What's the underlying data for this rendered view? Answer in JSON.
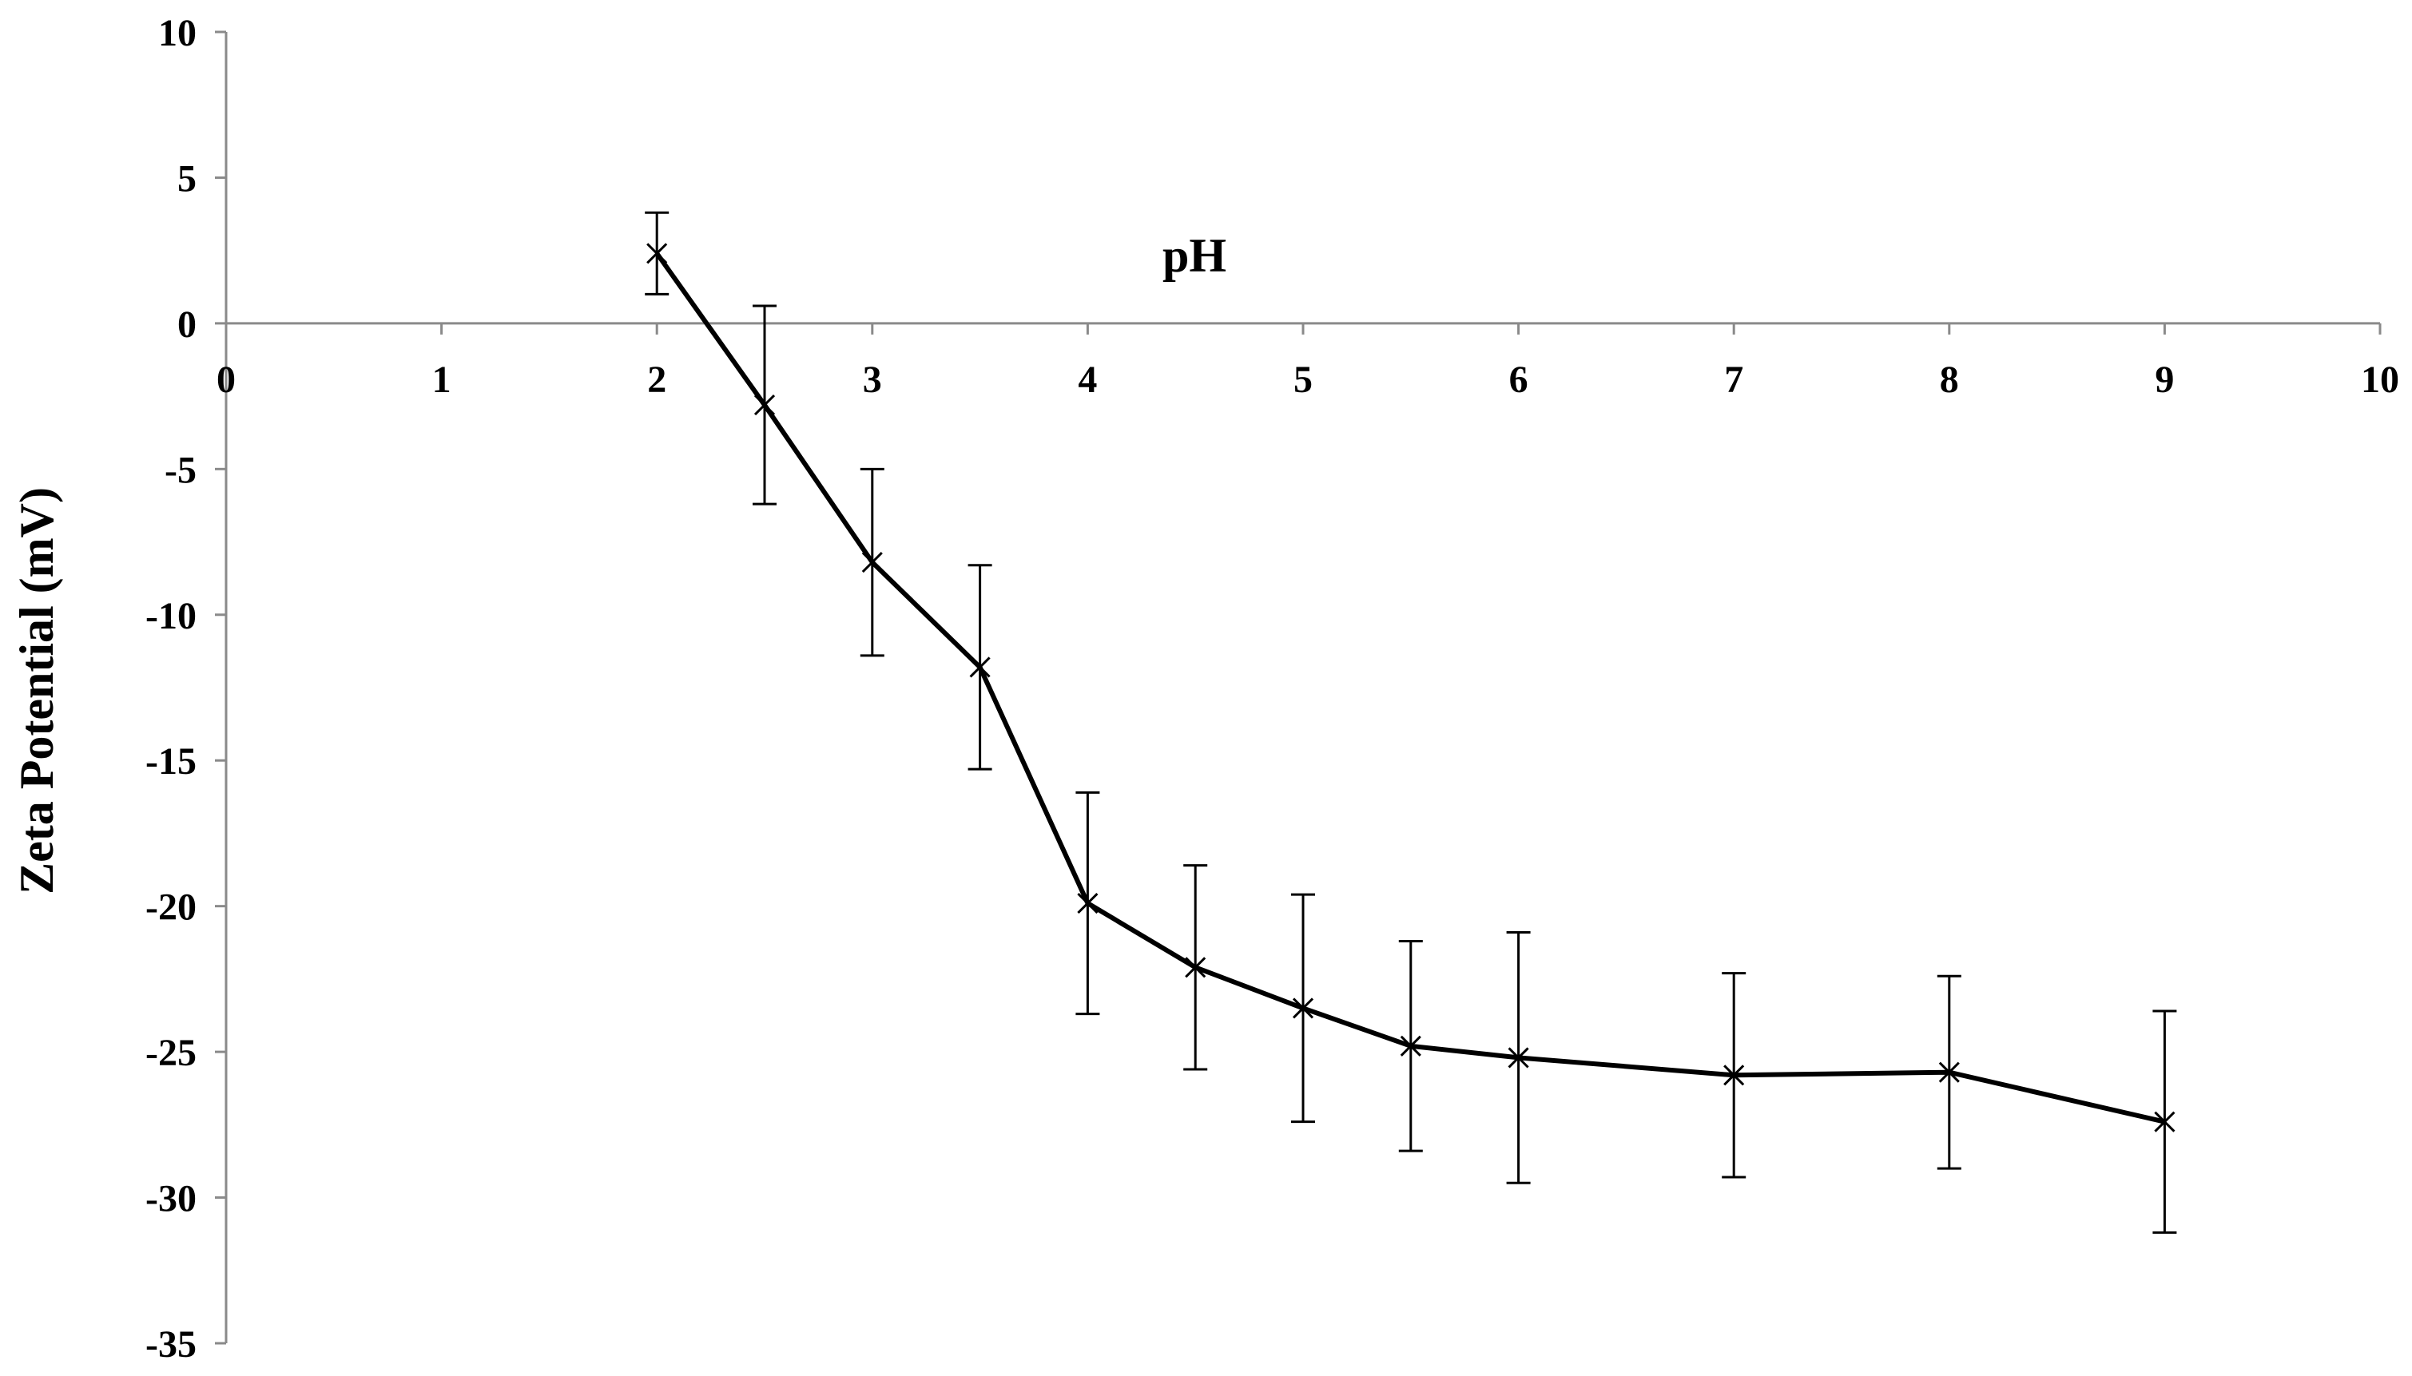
{
  "chart_data": {
    "type": "line",
    "title": "",
    "xlabel": "pH",
    "ylabel": "Zeta Potential (mV)",
    "xlim": [
      0,
      10
    ],
    "ylim": [
      -35,
      10
    ],
    "xticks": [
      "0",
      "1",
      "2",
      "3",
      "4",
      "5",
      "6",
      "7",
      "8",
      "9",
      "10"
    ],
    "yticks": [
      "10",
      "5",
      "0",
      "-5",
      "-10",
      "-15",
      "-20",
      "-25",
      "-30",
      "-35"
    ],
    "grid": false,
    "marker": "x",
    "line_color": "#000000",
    "series": [
      {
        "x": [
          2,
          2.5,
          3,
          3.5,
          4,
          4.5,
          5,
          5.5,
          6,
          7,
          8,
          9
        ],
        "y": [
          2.4,
          -2.8,
          -8.2,
          -11.8,
          -19.9,
          -22.1,
          -23.5,
          -24.8,
          -25.2,
          -25.8,
          -25.7,
          -27.4
        ],
        "error": [
          1.4,
          3.4,
          3.2,
          3.5,
          3.8,
          3.5,
          3.9,
          3.6,
          4.3,
          3.5,
          3.3,
          3.8
        ]
      }
    ]
  }
}
